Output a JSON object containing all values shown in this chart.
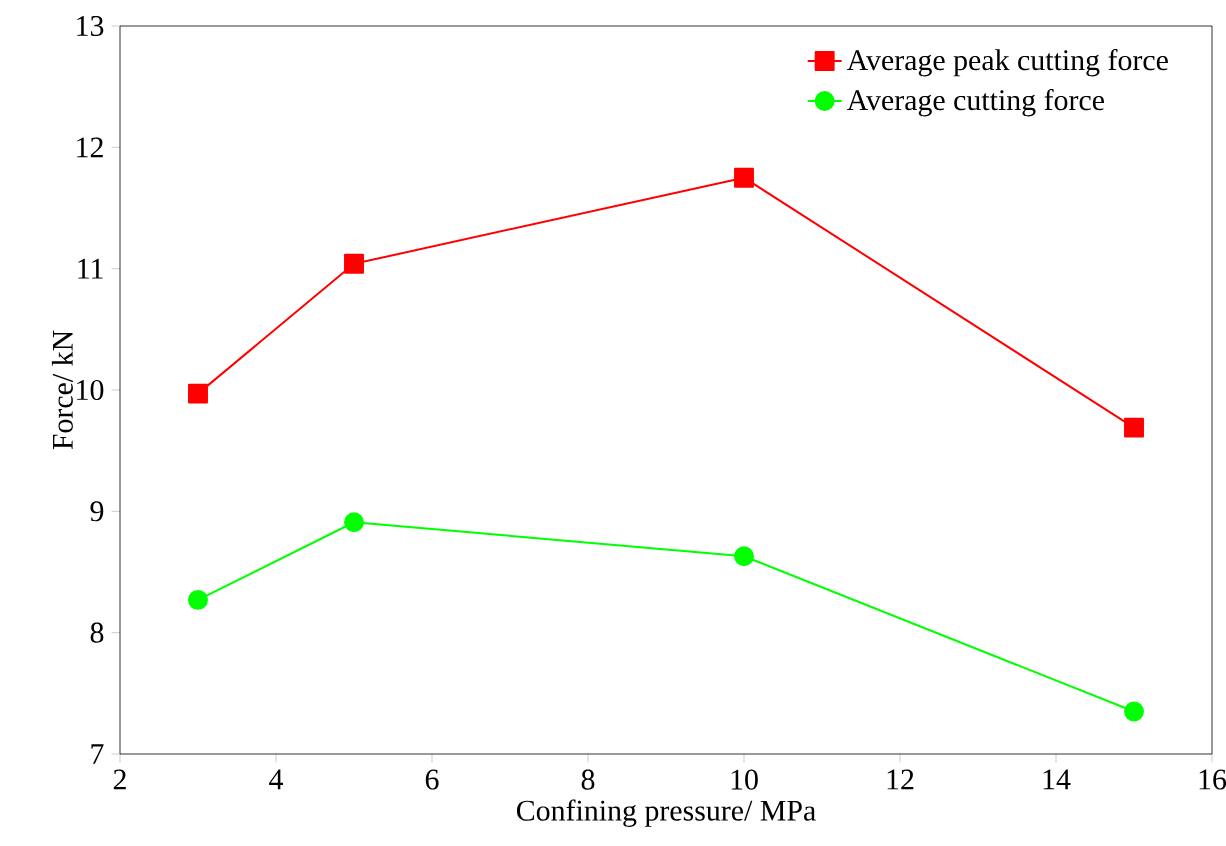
{
  "chart_data": {
    "type": "line",
    "xlabel": "Confining pressure/ MPa",
    "ylabel": "Force/ kN",
    "x": [
      3,
      5,
      10,
      15
    ],
    "series": [
      {
        "name": "Average peak cutting force",
        "color": "#ff0000",
        "marker": "square",
        "values": [
          9.97,
          11.04,
          11.75,
          9.69
        ]
      },
      {
        "name": "Average cutting force",
        "color": "#00ff00",
        "marker": "circle",
        "values": [
          8.27,
          8.91,
          8.63,
          7.35
        ]
      }
    ],
    "xlim": [
      2,
      16
    ],
    "xticks": [
      2,
      4,
      6,
      8,
      10,
      12,
      14,
      16
    ],
    "ylim": [
      7,
      13
    ],
    "yticks": [
      7,
      8,
      9,
      10,
      11,
      12,
      13
    ],
    "legend": "top right",
    "grid": false,
    "line_style": "solid"
  }
}
